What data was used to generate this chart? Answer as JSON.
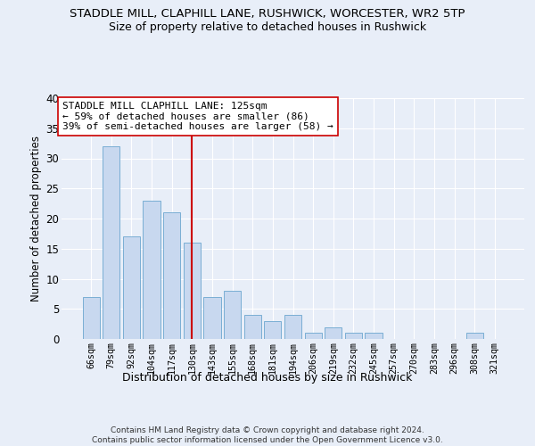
{
  "title": "STADDLE MILL, CLAPHILL LANE, RUSHWICK, WORCESTER, WR2 5TP",
  "subtitle": "Size of property relative to detached houses in Rushwick",
  "xlabel": "Distribution of detached houses by size in Rushwick",
  "ylabel": "Number of detached properties",
  "bar_labels": [
    "66sqm",
    "79sqm",
    "92sqm",
    "104sqm",
    "117sqm",
    "130sqm",
    "143sqm",
    "155sqm",
    "168sqm",
    "181sqm",
    "194sqm",
    "206sqm",
    "219sqm",
    "232sqm",
    "245sqm",
    "257sqm",
    "270sqm",
    "283sqm",
    "296sqm",
    "308sqm",
    "321sqm"
  ],
  "bar_values": [
    7,
    32,
    17,
    23,
    21,
    16,
    7,
    8,
    4,
    3,
    4,
    1,
    2,
    1,
    1,
    0,
    0,
    0,
    0,
    1,
    0
  ],
  "bar_color": "#c8d8ef",
  "bar_edge_color": "#7aaed4",
  "red_line_index": 5,
  "red_line_color": "#cc0000",
  "annotation_line1": "STADDLE MILL CLAPHILL LANE: 125sqm",
  "annotation_line2": "← 59% of detached houses are smaller (86)",
  "annotation_line3": "39% of semi-detached houses are larger (58) →",
  "annotation_box_facecolor": "#ffffff",
  "annotation_box_edgecolor": "#cc0000",
  "ylim": [
    0,
    40
  ],
  "yticks": [
    0,
    5,
    10,
    15,
    20,
    25,
    30,
    35,
    40
  ],
  "footer": "Contains HM Land Registry data © Crown copyright and database right 2024.\nContains public sector information licensed under the Open Government Licence v3.0.",
  "background_color": "#e8eef8",
  "grid_color": "#ffffff",
  "title_fontsize": 9.5,
  "subtitle_fontsize": 9.0,
  "annotation_fontsize": 8.0,
  "ylabel_fontsize": 8.5,
  "xlabel_fontsize": 9.0,
  "footer_fontsize": 6.5
}
